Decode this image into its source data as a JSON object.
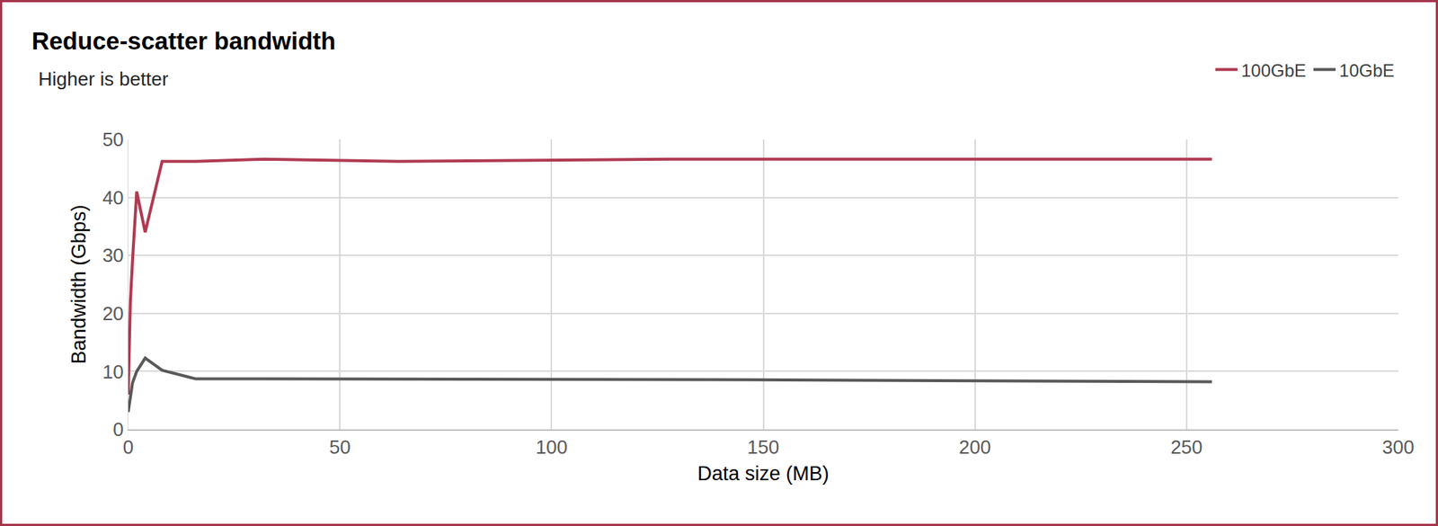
{
  "chart_data": {
    "type": "line",
    "title": "Reduce-scatter bandwidth",
    "subtitle": "Higher is better",
    "x_label": "Data size (MB)",
    "y_label": "Bandwidth (Gbps)",
    "x": [
      0,
      0.5,
      1,
      2,
      4,
      8,
      16,
      32,
      64,
      128,
      256
    ],
    "series": [
      {
        "name": "100GbE",
        "color": "#b03a52",
        "values": [
          6,
          22,
          29,
          41,
          34,
          46.2,
          46.2,
          46.6,
          46.2,
          46.6,
          46.6
        ]
      },
      {
        "name": "10GbE",
        "color": "#595959",
        "values": [
          3,
          6,
          8,
          10,
          12.3,
          10.2,
          8.7,
          8.7,
          8.7,
          8.6,
          8.2
        ]
      }
    ],
    "xlim": [
      0,
      300
    ],
    "xticks": [
      0,
      50,
      100,
      150,
      200,
      250,
      300
    ],
    "ylim": [
      0,
      50
    ],
    "yticks": [
      0,
      10,
      20,
      30,
      40,
      50
    ],
    "grid": true,
    "legend": "top right"
  }
}
